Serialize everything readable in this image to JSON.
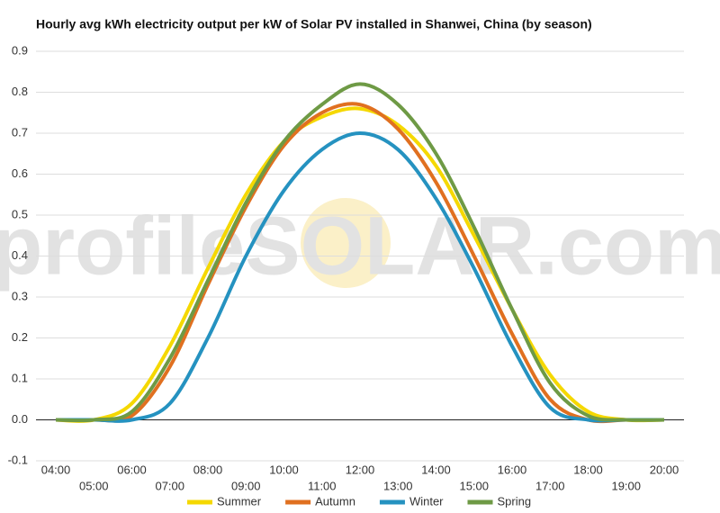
{
  "chart_data": {
    "type": "line",
    "title": "Hourly avg kWh electricity output per kW of Solar PV installed in Shanwei, China (by season)",
    "watermark": "profileSOLAR.com",
    "categories": [
      "04:00",
      "05:00",
      "06:00",
      "07:00",
      "08:00",
      "09:00",
      "10:00",
      "11:00",
      "12:00",
      "13:00",
      "14:00",
      "15:00",
      "16:00",
      "17:00",
      "18:00",
      "19:00",
      "20:00"
    ],
    "series": [
      {
        "name": "Summer",
        "color": "#f5d800",
        "values": [
          0,
          0,
          0.04,
          0.18,
          0.37,
          0.55,
          0.68,
          0.74,
          0.76,
          0.72,
          0.62,
          0.45,
          0.27,
          0.11,
          0.02,
          0,
          0
        ]
      },
      {
        "name": "Autumn",
        "color": "#e07020",
        "values": [
          0,
          0,
          0.01,
          0.13,
          0.33,
          0.52,
          0.67,
          0.75,
          0.77,
          0.71,
          0.58,
          0.4,
          0.21,
          0.05,
          0,
          0,
          0
        ]
      },
      {
        "name": "Winter",
        "color": "#2592c0",
        "values": [
          0,
          0,
          0,
          0.04,
          0.2,
          0.4,
          0.56,
          0.66,
          0.7,
          0.66,
          0.54,
          0.37,
          0.18,
          0.03,
          0,
          0,
          0
        ]
      },
      {
        "name": "Spring",
        "color": "#6e9a45",
        "values": [
          0,
          0,
          0.02,
          0.15,
          0.34,
          0.53,
          0.68,
          0.77,
          0.82,
          0.77,
          0.65,
          0.47,
          0.27,
          0.09,
          0.01,
          0,
          0
        ]
      }
    ],
    "ylim": [
      -0.1,
      0.9
    ],
    "yticks": [
      -0.1,
      {
        "value": 0,
        "label": "0.0"
      },
      0.1,
      0.2,
      0.3,
      0.4,
      0.5,
      0.6,
      0.7,
      0.8,
      0.9
    ],
    "grid": true,
    "legend": "bottom"
  }
}
